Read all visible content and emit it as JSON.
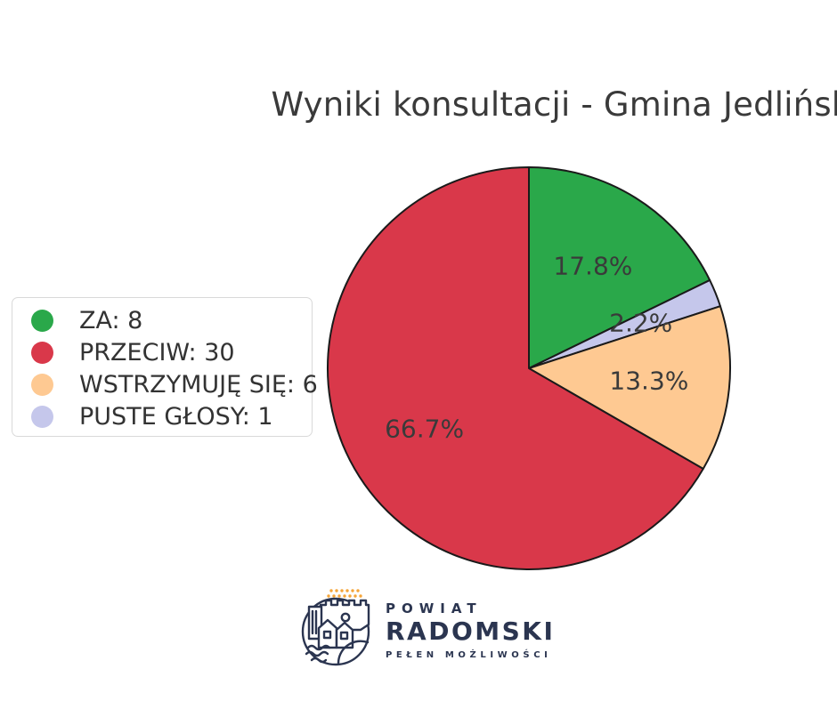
{
  "title": "Wyniki konsultacji - Gmina Jedlińsk",
  "chart_data": {
    "type": "pie",
    "title": "Wyniki konsultacji - Gmina Jedlińsk",
    "total": 45,
    "rotation_deg": 90,
    "clockwise": true,
    "clockwise_draw_order": [
      "ZA",
      "PUSTE GŁOSY",
      "WSTRZYMUJĘ SIĘ",
      "PRZECIW"
    ],
    "pct_label_distance": 0.6,
    "edge_color": "#1a1a1a",
    "pct_label_color": "#3a3a3a",
    "legend_position": "left",
    "slices": [
      {
        "label": "ZA",
        "value": 8,
        "pct": 17.8,
        "pct_label": "17.8%",
        "legend_label": "ZA: 8",
        "color": "#2aa84a"
      },
      {
        "label": "PRZECIW",
        "value": 30,
        "pct": 66.7,
        "pct_label": "66.7%",
        "legend_label": "PRZECIW: 30",
        "color": "#d9384a"
      },
      {
        "label": "WSTRZYMUJĘ SIĘ",
        "value": 6,
        "pct": 13.3,
        "pct_label": "13.3%",
        "legend_label": "WSTRZYMUJĘ SIĘ: 6",
        "color": "#fec992"
      },
      {
        "label": "PUSTE GŁOSY",
        "value": 1,
        "pct": 2.2,
        "pct_label": "2.2%",
        "legend_label": "PUSTE GŁOSY: 1",
        "color": "#c5c7eb"
      }
    ]
  },
  "footer_logo": {
    "line1": "POWIAT",
    "line2": "RADOMSKI",
    "line3": "PEŁEN MOŻLIWOŚCI",
    "navy": "#2b3550",
    "accent_orange": "#f5a53a"
  }
}
